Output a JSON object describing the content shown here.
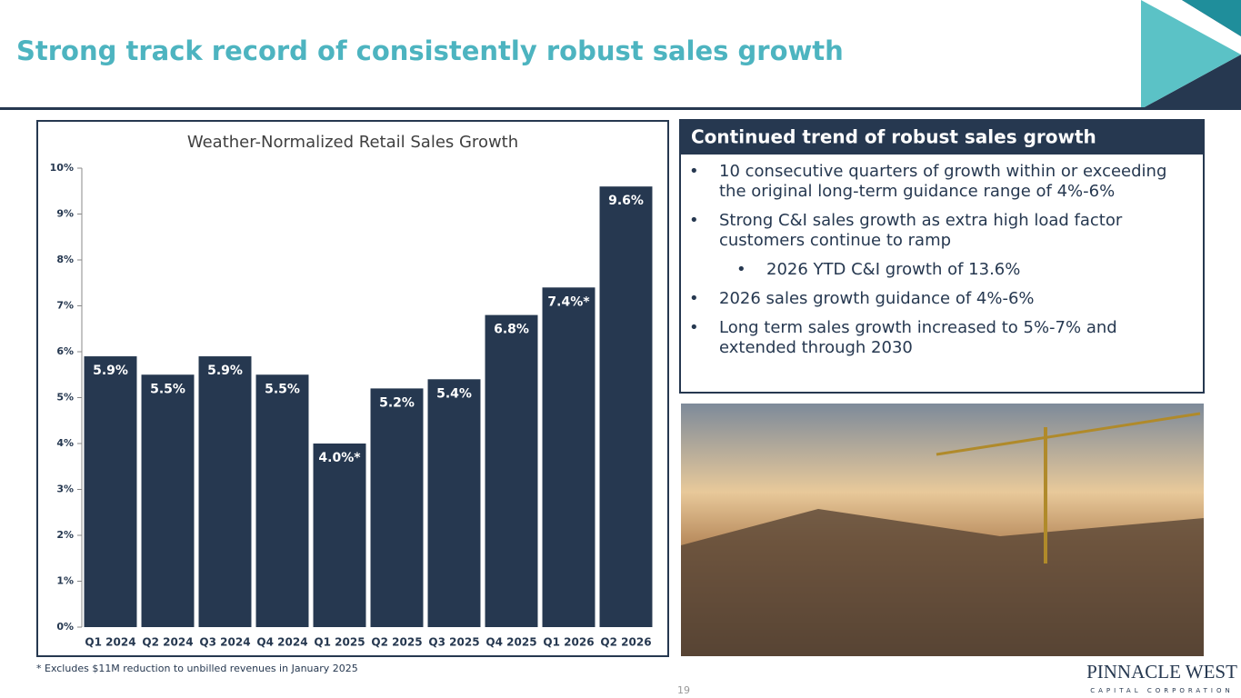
{
  "header": {
    "title": "Strong track record of consistently robust sales growth"
  },
  "chart_data": {
    "type": "bar",
    "title": "Weather-Normalized Retail Sales Growth",
    "categories": [
      "Q1 2024",
      "Q2 2024",
      "Q3 2024",
      "Q4 2024",
      "Q1 2025",
      "Q2 2025",
      "Q3 2025",
      "Q4 2025",
      "Q1 2026",
      "Q2 2026"
    ],
    "values": [
      5.9,
      5.5,
      5.9,
      5.5,
      4.0,
      5.2,
      5.4,
      6.8,
      7.4,
      9.6
    ],
    "value_labels": [
      "5.9%",
      "5.5%",
      "5.9%",
      "5.5%",
      "4.0%*",
      "5.2%",
      "5.4%",
      "6.8%",
      "7.4%*",
      "9.6%"
    ],
    "color": "#263850",
    "ylim": [
      0,
      10
    ],
    "yticks": [
      {
        "value": 0,
        "label": "0%"
      },
      {
        "value": 1,
        "label": "1%"
      },
      {
        "value": 2,
        "label": "2%"
      },
      {
        "value": 3,
        "label": "3%"
      },
      {
        "value": 4,
        "label": "4%"
      },
      {
        "value": 5,
        "label": "5%"
      },
      {
        "value": 6,
        "label": "6%"
      },
      {
        "value": 7,
        "label": "7%"
      },
      {
        "value": 8,
        "label": "8%"
      },
      {
        "value": 9,
        "label": "9%"
      },
      {
        "value": 10,
        "label": "10%"
      }
    ]
  },
  "panel": {
    "heading": "Continued trend of robust sales growth",
    "items": [
      {
        "text": "10 consecutive quarters of growth within or exceeding the original long-term guidance range of 4%-6%"
      },
      {
        "text": "Strong C&I sales growth as extra high load factor customers continue to ramp",
        "sub_items": [
          "2026 YTD C&I growth of 13.6%"
        ]
      },
      {
        "text": "2026 sales growth guidance of 4%-6%"
      },
      {
        "text": "Long term sales growth increased to 5%-7% and extended through 2030"
      }
    ]
  },
  "footnote": "* Excludes $11M reduction to unbilled revenues in January 2025",
  "page_number": "19",
  "logo": {
    "name": "PINNACLE WEST",
    "tagline": "CAPITAL CORPORATION"
  }
}
